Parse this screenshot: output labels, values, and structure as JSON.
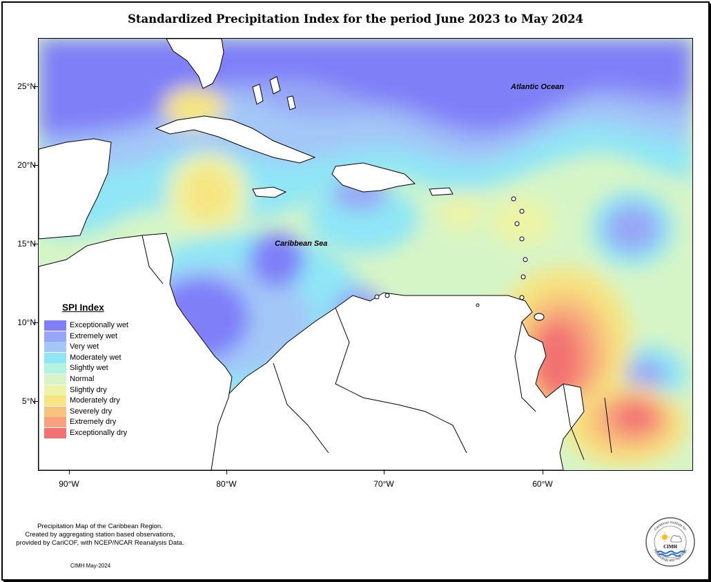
{
  "title": "Standardized Precipitation Index for the period June 2023 to May 2024",
  "map": {
    "labels": {
      "atlantic": "Atlantic Ocean",
      "caribbean": "Caribbean Sea"
    },
    "lat_ticks": [
      "25°N",
      "20°N",
      "15°N",
      "10°N",
      "5°N"
    ],
    "lon_ticks": [
      "90°W",
      "80°W",
      "70°W",
      "60°W"
    ]
  },
  "legend": {
    "title": "SPI Index",
    "items": [
      {
        "label": "Exceptionally wet",
        "color": "#7f7ff8"
      },
      {
        "label": "Extremely wet",
        "color": "#97a7f6"
      },
      {
        "label": "Very wet",
        "color": "#a3c8f8"
      },
      {
        "label": "Moderately wet",
        "color": "#8fe6f6"
      },
      {
        "label": "Slightly wet",
        "color": "#b2f4e0"
      },
      {
        "label": "Normal",
        "color": "#d6f5c7"
      },
      {
        "label": "Slightly dry",
        "color": "#edf4a6"
      },
      {
        "label": "Moderately dry",
        "color": "#f6e582"
      },
      {
        "label": "Severely dry",
        "color": "#f8c47c"
      },
      {
        "label": "Extremely dry",
        "color": "#f6a27c"
      },
      {
        "label": "Exceptionally dry",
        "color": "#f27272"
      }
    ]
  },
  "footnote": {
    "line1": "Precipitation Map of the Caribbean Region.",
    "line2": "Created by aggregating station based observations,",
    "line3": "provided by CariCOF, with NCEP/NCAR Reanalysis Data."
  },
  "date_note": "CIMH May-2024",
  "logo": {
    "top_text": "Caribbean Institute for",
    "bottom_text": "Meteorology and Hydrology",
    "center_text": "CIMH",
    "icons": [
      "sun-icon",
      "cloud-icon",
      "water-icon"
    ]
  }
}
